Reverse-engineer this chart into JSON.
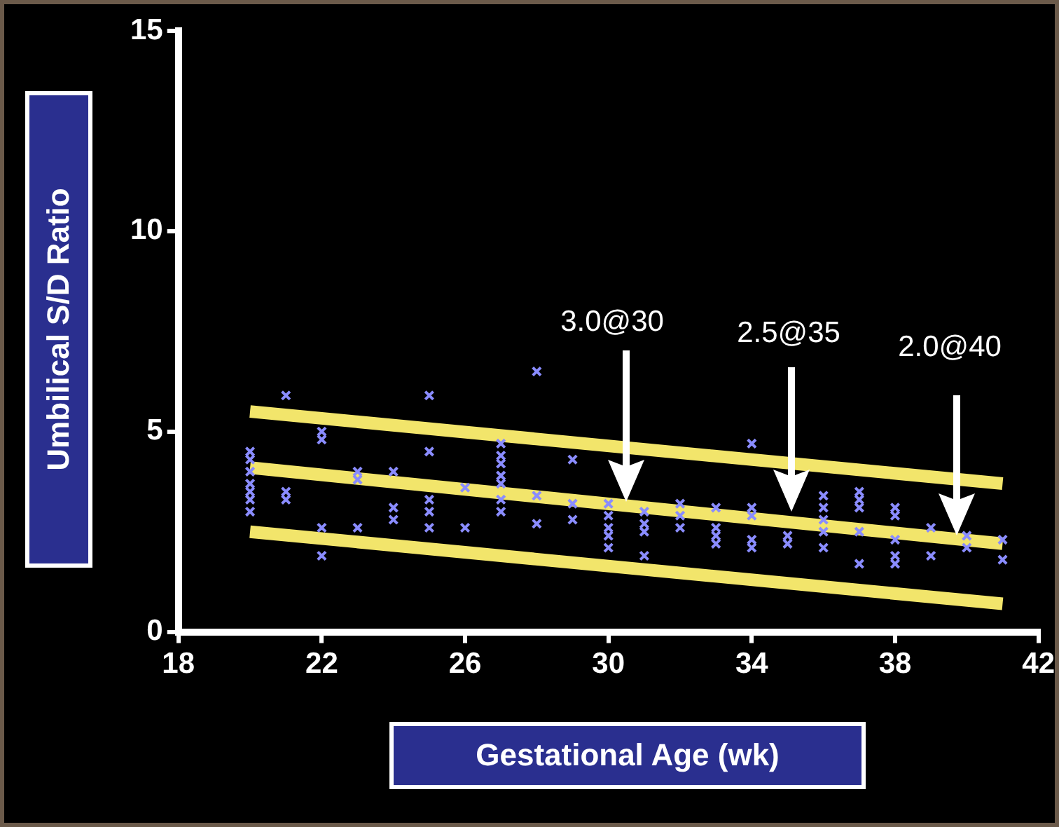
{
  "chart_data": {
    "type": "scatter",
    "xlabel": "Gestational Age (wk)",
    "ylabel": "Umbilical S/D Ratio",
    "xlim": [
      18,
      42
    ],
    "xticks": [
      18,
      22,
      26,
      30,
      34,
      38,
      42
    ],
    "ylim": [
      0,
      15
    ],
    "yticks": [
      0,
      5,
      10,
      15
    ],
    "grid": false,
    "legend": false,
    "series": [
      {
        "marker": "cross",
        "color": "#8a8cff",
        "x": [
          20,
          20,
          20,
          20,
          20,
          20,
          20,
          21,
          21,
          21,
          22,
          22,
          22,
          22,
          23,
          23,
          23,
          24,
          24,
          24,
          25,
          25,
          25,
          25,
          25,
          26,
          26,
          27,
          27,
          27,
          27,
          27,
          27,
          27,
          28,
          28,
          28,
          29,
          29,
          29,
          30,
          30,
          30,
          30,
          30,
          31,
          31,
          31,
          31,
          32,
          32,
          32,
          33,
          33,
          33,
          33,
          34,
          34,
          34,
          34,
          34,
          35,
          35,
          36,
          36,
          36,
          36,
          36,
          37,
          37,
          37,
          37,
          37,
          38,
          38,
          38,
          38,
          38,
          39,
          39,
          40,
          40,
          41,
          41
        ],
        "values": [
          4.5,
          4.3,
          4.0,
          3.7,
          3.5,
          3.3,
          3.0,
          5.9,
          3.5,
          3.3,
          5.0,
          4.8,
          2.6,
          1.9,
          4.0,
          3.8,
          2.6,
          4.0,
          3.1,
          2.8,
          5.9,
          4.5,
          3.3,
          3.0,
          2.6,
          3.6,
          2.6,
          4.7,
          4.4,
          4.2,
          3.9,
          3.7,
          3.3,
          3.0,
          6.5,
          3.4,
          2.7,
          4.3,
          3.2,
          2.8,
          3.2,
          2.9,
          2.6,
          2.4,
          2.1,
          3.0,
          2.7,
          2.5,
          1.9,
          3.2,
          2.9,
          2.6,
          3.1,
          2.6,
          2.4,
          2.2,
          4.7,
          3.1,
          2.9,
          2.3,
          2.1,
          2.4,
          2.2,
          3.4,
          3.1,
          2.8,
          2.5,
          2.1,
          3.5,
          3.3,
          3.1,
          2.5,
          1.7,
          3.1,
          2.9,
          2.3,
          1.9,
          1.7,
          2.6,
          1.9,
          2.4,
          2.1,
          2.3,
          1.8
        ]
      },
      {
        "type": "line",
        "marker": "none",
        "color": "#f2e56b",
        "x": [
          20,
          41
        ],
        "values": [
          5.5,
          3.7
        ]
      },
      {
        "type": "line",
        "marker": "none",
        "color": "#f2e56b",
        "x": [
          20,
          41
        ],
        "values": [
          4.1,
          2.2
        ]
      },
      {
        "type": "line",
        "marker": "none",
        "color": "#f2e56b",
        "x": [
          20,
          41
        ],
        "values": [
          2.5,
          0.7
        ]
      }
    ],
    "annotations": [
      "3.0@30",
      "2.5@35",
      "2.0@40"
    ]
  }
}
